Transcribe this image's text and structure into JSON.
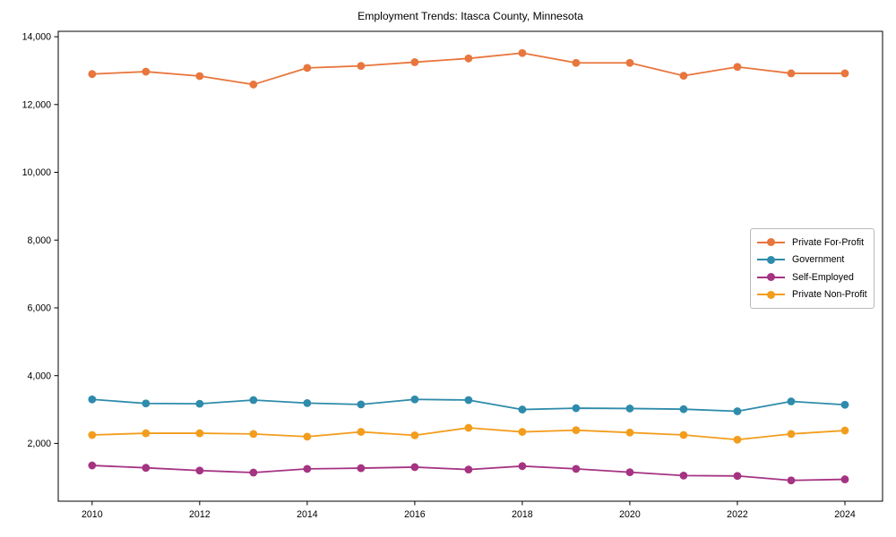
{
  "chart_data": {
    "type": "line",
    "title": "Employment Trends: Itasca County, Minnesota",
    "xlabel": "",
    "ylabel": "",
    "x": [
      2010,
      2011,
      2012,
      2013,
      2014,
      2015,
      2016,
      2017,
      2018,
      2019,
      2020,
      2021,
      2022,
      2023,
      2024
    ],
    "series": [
      {
        "name": "Private For-Profit",
        "color": "#e8763d",
        "values": [
          12900,
          12970,
          12840,
          12590,
          13080,
          13140,
          13250,
          13360,
          13520,
          13230,
          13230,
          12850,
          13110,
          12920,
          12920
        ]
      },
      {
        "name": "Government",
        "color": "#2e8bab",
        "values": [
          3300,
          3180,
          3170,
          3280,
          3190,
          3150,
          3300,
          3280,
          3000,
          3040,
          3030,
          3010,
          2950,
          3240,
          3140
        ]
      },
      {
        "name": "Self-Employed",
        "color": "#a53382",
        "values": [
          1350,
          1280,
          1200,
          1140,
          1250,
          1270,
          1300,
          1230,
          1330,
          1250,
          1150,
          1050,
          1040,
          910,
          940
        ]
      },
      {
        "name": "Private Non-Profit",
        "color": "#f39d1d",
        "values": [
          2250,
          2300,
          2300,
          2280,
          2200,
          2340,
          2240,
          2460,
          2340,
          2390,
          2320,
          2250,
          2110,
          2280,
          2380
        ]
      }
    ],
    "xticks": [
      2010,
      2012,
      2014,
      2016,
      2018,
      2020,
      2022,
      2024
    ],
    "yticks": [
      2000,
      4000,
      6000,
      8000,
      10000,
      12000,
      14000
    ],
    "ytick_labels": [
      "2,000",
      "4,000",
      "6,000",
      "8,000",
      "10,000",
      "12,000",
      "14,000"
    ],
    "xlim": [
      2009.37,
      2024.7
    ],
    "ylim": [
      295,
      14160
    ],
    "grid": false,
    "legend_position": "center-right",
    "axis_color": "#000000",
    "marker": "circle",
    "line_width": 1.8,
    "marker_radius": 4.4
  }
}
